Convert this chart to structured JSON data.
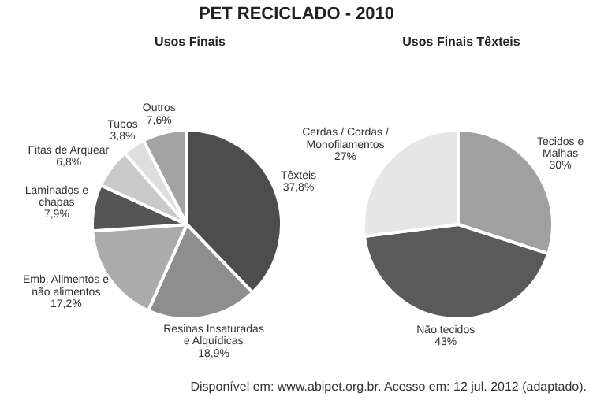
{
  "chart_data": [
    {
      "type": "pie",
      "title": "PET RECICLADO - 2010",
      "subtitle": "Usos Finais",
      "categories": [
        "Têxteis",
        "Resinas Insaturadas e Alquídicas",
        "Emb. Alimentos e não alimentos",
        "Laminados e chapas",
        "Fitas de Arquear",
        "Tubos",
        "Outros"
      ],
      "values": [
        37.8,
        18.9,
        17.2,
        7.9,
        6.8,
        3.8,
        7.6
      ],
      "value_labels": [
        "37,8%",
        "18,9%",
        "17,2%",
        "7,9%",
        "6,8%",
        "3,8%",
        "7,6%"
      ],
      "colors": [
        "#4d4d4d",
        "#8e8e8e",
        "#ababab",
        "#555555",
        "#c9c9c9",
        "#dedede",
        "#a3a3a3"
      ]
    },
    {
      "type": "pie",
      "title": "Usos Finais Têxteis",
      "categories": [
        "Tecidos e Malhas",
        "Não tecidos",
        "Cerdas / Cordas / Monofilamentos"
      ],
      "values": [
        30,
        43,
        27
      ],
      "value_labels": [
        "30%",
        "43%",
        "27%"
      ],
      "colors": [
        "#a0a0a0",
        "#5a5a5a",
        "#e6e6e6"
      ],
      "annotations": [
        "Disponível em: www.abipet.org.br. Acesso em: 12 jul. 2012 (adaptado)."
      ]
    }
  ]
}
